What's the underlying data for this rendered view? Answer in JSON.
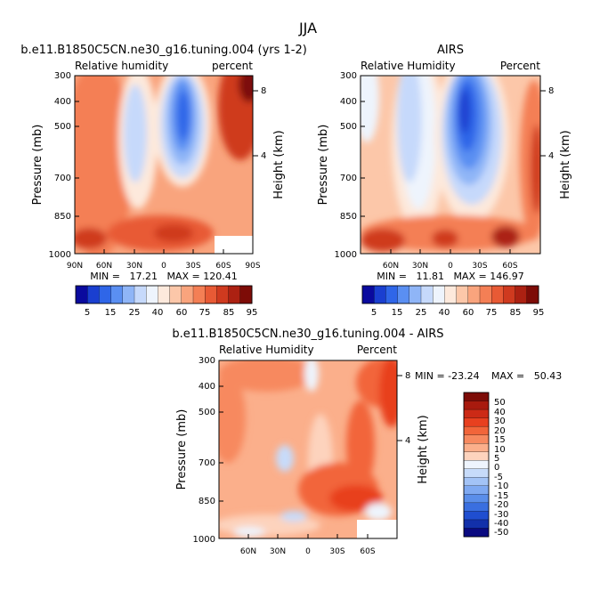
{
  "figure": {
    "title": "JJA"
  },
  "chart_data": [
    {
      "type": "heatmap",
      "title": "b.e11.B1850C5CN.ne30_g16.tuning.004 (yrs 1-2)",
      "left_label": "Relative humidity",
      "right_label": "percent",
      "ylabel": "Pressure (mb)",
      "ylabel_right": "Height (km)",
      "y_ticks": [
        "300",
        "400",
        "500",
        "700",
        "850",
        "1000"
      ],
      "y_ticks_right": [
        "8",
        "4"
      ],
      "x_ticks": [
        "90N",
        "60N",
        "30N",
        "0",
        "30S",
        "60S",
        "90S"
      ],
      "stats": "MIN =   17.21   MAX = 120.41",
      "min": 17.21,
      "max": 120.41,
      "colorbar_labels": [
        "5",
        "15",
        "25",
        "40",
        "60",
        "75",
        "85",
        "95"
      ],
      "colorbar_colors": [
        "#0a0a9e",
        "#1a3fd0",
        "#2f66e8",
        "#5a8ff2",
        "#8fb5f7",
        "#c6d9fb",
        "#eef4fd",
        "#fde9dc",
        "#fcc7a9",
        "#f9a47d",
        "#f47f55",
        "#e85a35",
        "#cf3a1f",
        "#ac2112",
        "#7d0c07"
      ]
    },
    {
      "type": "heatmap",
      "title": "AIRS",
      "left_label": "Relative Humidity",
      "right_label": "Percent",
      "ylabel": "Pressure (mb)",
      "ylabel_right": "Height (km)",
      "y_ticks": [
        "300",
        "400",
        "500",
        "700",
        "850",
        "1000"
      ],
      "y_ticks_right": [
        "8",
        "4"
      ],
      "x_ticks": [
        "60N",
        "30N",
        "0",
        "30S",
        "60S"
      ],
      "stats": "MIN =   11.81   MAX = 146.97",
      "min": 11.81,
      "max": 146.97,
      "colorbar_labels": [
        "5",
        "15",
        "25",
        "40",
        "60",
        "75",
        "85",
        "95"
      ],
      "colorbar_colors": [
        "#0a0a9e",
        "#1a3fd0",
        "#2f66e8",
        "#5a8ff2",
        "#8fb5f7",
        "#c6d9fb",
        "#eef4fd",
        "#fde9dc",
        "#fcc7a9",
        "#f9a47d",
        "#f47f55",
        "#e85a35",
        "#cf3a1f",
        "#ac2112",
        "#7d0c07"
      ]
    },
    {
      "type": "heatmap",
      "title": "b.e11.B1850C5CN.ne30_g16.tuning.004 - AIRS",
      "left_label": "Relative Humidity",
      "right_label": "Percent",
      "ylabel": "Pressure (mb)",
      "ylabel_right": "Height (km)",
      "y_ticks": [
        "300",
        "400",
        "500",
        "700",
        "850",
        "1000"
      ],
      "y_ticks_right": [
        "8",
        "4"
      ],
      "x_ticks": [
        "60N",
        "30N",
        "0",
        "30S",
        "60S"
      ],
      "stats_min": "MIN = -23.24",
      "stats_max": "MAX =   50.43",
      "min": -23.24,
      "max": 50.43,
      "colorbar_labels": [
        "50",
        "40",
        "30",
        "20",
        "15",
        "10",
        "5",
        "0",
        "-5",
        "-10",
        "-15",
        "-20",
        "-30",
        "-40",
        "-50"
      ],
      "colorbar_colors": [
        "#7d0c07",
        "#a81a0e",
        "#cc2a16",
        "#e8401f",
        "#f2653a",
        "#f7895f",
        "#fbaf8b",
        "#fdd3bd",
        "#eef4fd",
        "#c7dbfa",
        "#a3c3f6",
        "#7fa9f1",
        "#5a8eea",
        "#3a6fe0",
        "#1f4ed0",
        "#1230aa",
        "#0a0a80"
      ]
    }
  ]
}
